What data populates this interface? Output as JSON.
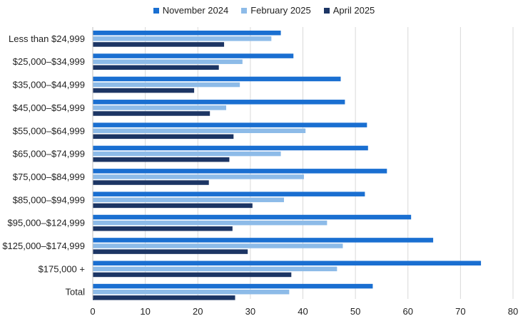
{
  "chart_data": {
    "type": "bar",
    "orientation": "horizontal",
    "categories": [
      "Less than $24,999",
      "$25,000–$34,999",
      "$35,000–$44,999",
      "$45,000–$54,999",
      "$55,000–$64,999",
      "$65,000–$74,999",
      "$75,000–$84,999",
      "$85,000–$94,999",
      "$95,000–$124,999",
      "$125,000–$174,999",
      "$175,000 +",
      "Total"
    ],
    "series": [
      {
        "name": "November 2024",
        "color": "#1a6fd1",
        "values": [
          35.8,
          38.2,
          47.2,
          48.0,
          52.2,
          52.4,
          56.0,
          51.8,
          60.6,
          64.8,
          73.9,
          53.3
        ]
      },
      {
        "name": "February 2025",
        "color": "#8dbbe8",
        "values": [
          34.0,
          28.5,
          28.0,
          25.4,
          40.5,
          35.8,
          40.2,
          36.4,
          44.6,
          47.6,
          46.5,
          37.4
        ]
      },
      {
        "name": "April 2025",
        "color": "#1c3564",
        "values": [
          25.0,
          24.0,
          19.3,
          22.3,
          26.8,
          26.0,
          22.1,
          30.4,
          26.6,
          29.5,
          37.8,
          27.1
        ]
      }
    ],
    "xlim": [
      0,
      80
    ],
    "xticks": [
      "0",
      "10",
      "20",
      "30",
      "40",
      "50",
      "60",
      "70",
      "80"
    ],
    "grid": "vertical",
    "legend": "top-center",
    "title": "",
    "xlabel": "",
    "ylabel": ""
  }
}
